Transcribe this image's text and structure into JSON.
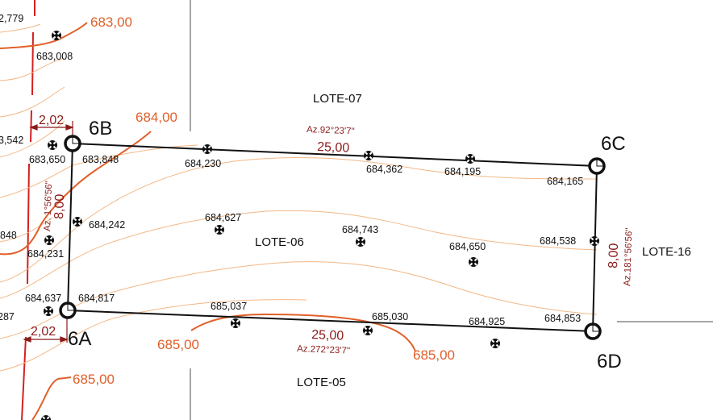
{
  "lots": {
    "north": "LOTE-07",
    "main": "LOTE-06",
    "east": "LOTE-16",
    "south": "LOTE-05"
  },
  "vertices": {
    "a": "6A",
    "b": "6B",
    "c": "6C",
    "d": "6D"
  },
  "contours": {
    "c683": "683,00",
    "c684": "684,00",
    "c685_left": "685,00",
    "c685_center": "685,00",
    "c685_right": "685,00"
  },
  "sides": {
    "north": {
      "length": "25,00",
      "azimuth": "Az.92°23'7\""
    },
    "south": {
      "length": "25,00",
      "azimuth": "Az.272°23'7\""
    },
    "west": {
      "length": "8,00",
      "azimuth": "Az. 1°56'56\""
    },
    "east": {
      "length": "8,00",
      "azimuth": "Az.181°56'56\""
    }
  },
  "offsets": {
    "top": "2,02",
    "bottom": "2,02"
  },
  "elevations": [
    "2,779",
    "683,008",
    "3,542",
    "683,650",
    "683,848",
    "684,230",
    "684,362",
    "684,195",
    "684,165",
    "684,242",
    "848",
    "684,231",
    "684,627",
    "684,743",
    "684,650",
    "684,538",
    "287",
    "684,637",
    "684,817",
    "685,037",
    "685,030",
    "684,925",
    "684,853"
  ],
  "colors": {
    "boundary": "#111111",
    "major_contour": "#e0602a",
    "minor_contour": "#f2b887",
    "dimension": "#8b1a1a",
    "street_line": "#888888"
  }
}
